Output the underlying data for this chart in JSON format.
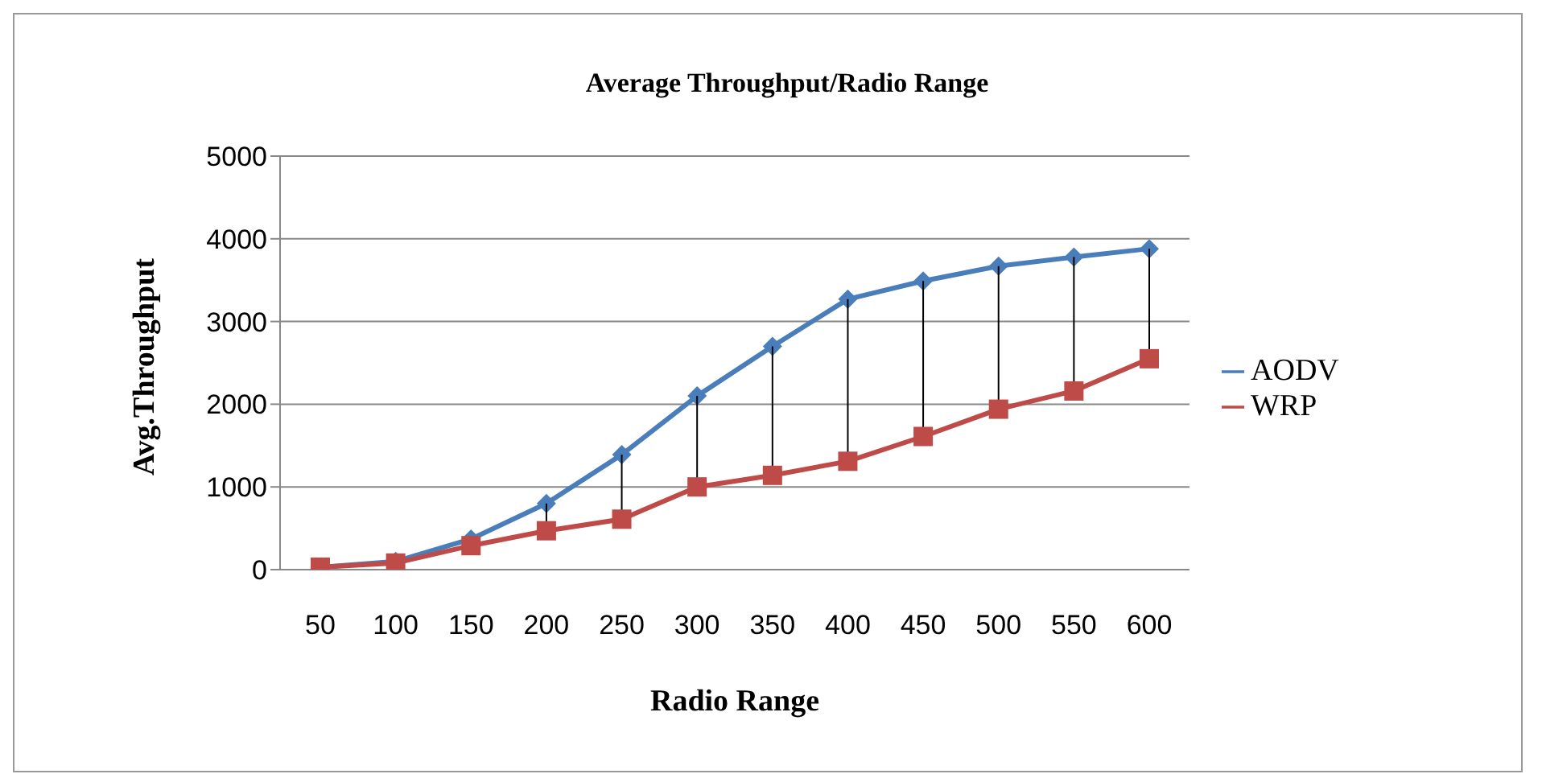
{
  "chart_data": {
    "type": "line",
    "title": "Average Throughput/Radio Range",
    "xlabel": "Radio Range",
    "ylabel": "Avg.Throughput",
    "categories": [
      "50",
      "100",
      "150",
      "200",
      "250",
      "300",
      "350",
      "400",
      "450",
      "500",
      "550",
      "600"
    ],
    "series": [
      {
        "name": "AODV",
        "color": "#4a7ebb",
        "marker": "diamond",
        "values": [
          30,
          100,
          370,
          800,
          1390,
          2100,
          2700,
          3270,
          3490,
          3670,
          3780,
          3880
        ]
      },
      {
        "name": "WRP",
        "color": "#be4b48",
        "marker": "square",
        "values": [
          30,
          80,
          290,
          470,
          610,
          1000,
          1140,
          1310,
          1610,
          1940,
          2160,
          2550
        ]
      }
    ],
    "ylim": [
      0,
      5000
    ],
    "yticks": [
      0,
      1000,
      2000,
      3000,
      4000,
      5000
    ],
    "grid": "y",
    "legend": "right"
  }
}
